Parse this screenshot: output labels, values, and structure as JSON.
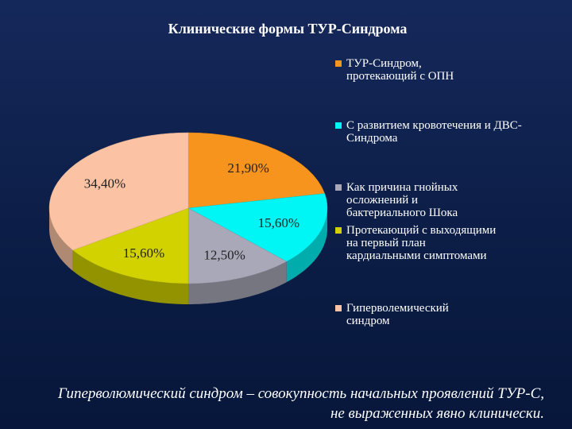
{
  "chart_data": {
    "type": "pie",
    "title": "Клинические формы ТУР-Синдрома",
    "categories": [
      "ТУР-Синдром, протекающий с ОПН",
      "С развитием кровотечения и ДВС-Синдрома",
      "Как причина гнойных осложнений и бактериального Шока",
      "Протекающий с выходящими на первый план кардиальными симптомами",
      "Гиперволемический синдром"
    ],
    "values": [
      21.9,
      15.6,
      12.5,
      15.6,
      34.4
    ],
    "value_labels": [
      "21,90%",
      "15,60%",
      "12,50%",
      "15,60%",
      "34,40%"
    ],
    "colors": [
      "#f7941d",
      "#00f5f5",
      "#a8a8b8",
      "#d2d200",
      "#fbc3a3"
    ],
    "legend": "right"
  },
  "footnote": "Гиперволюмический синдром – совокупность начальных проявлений ТУР-С, не выраженных явно клинически."
}
